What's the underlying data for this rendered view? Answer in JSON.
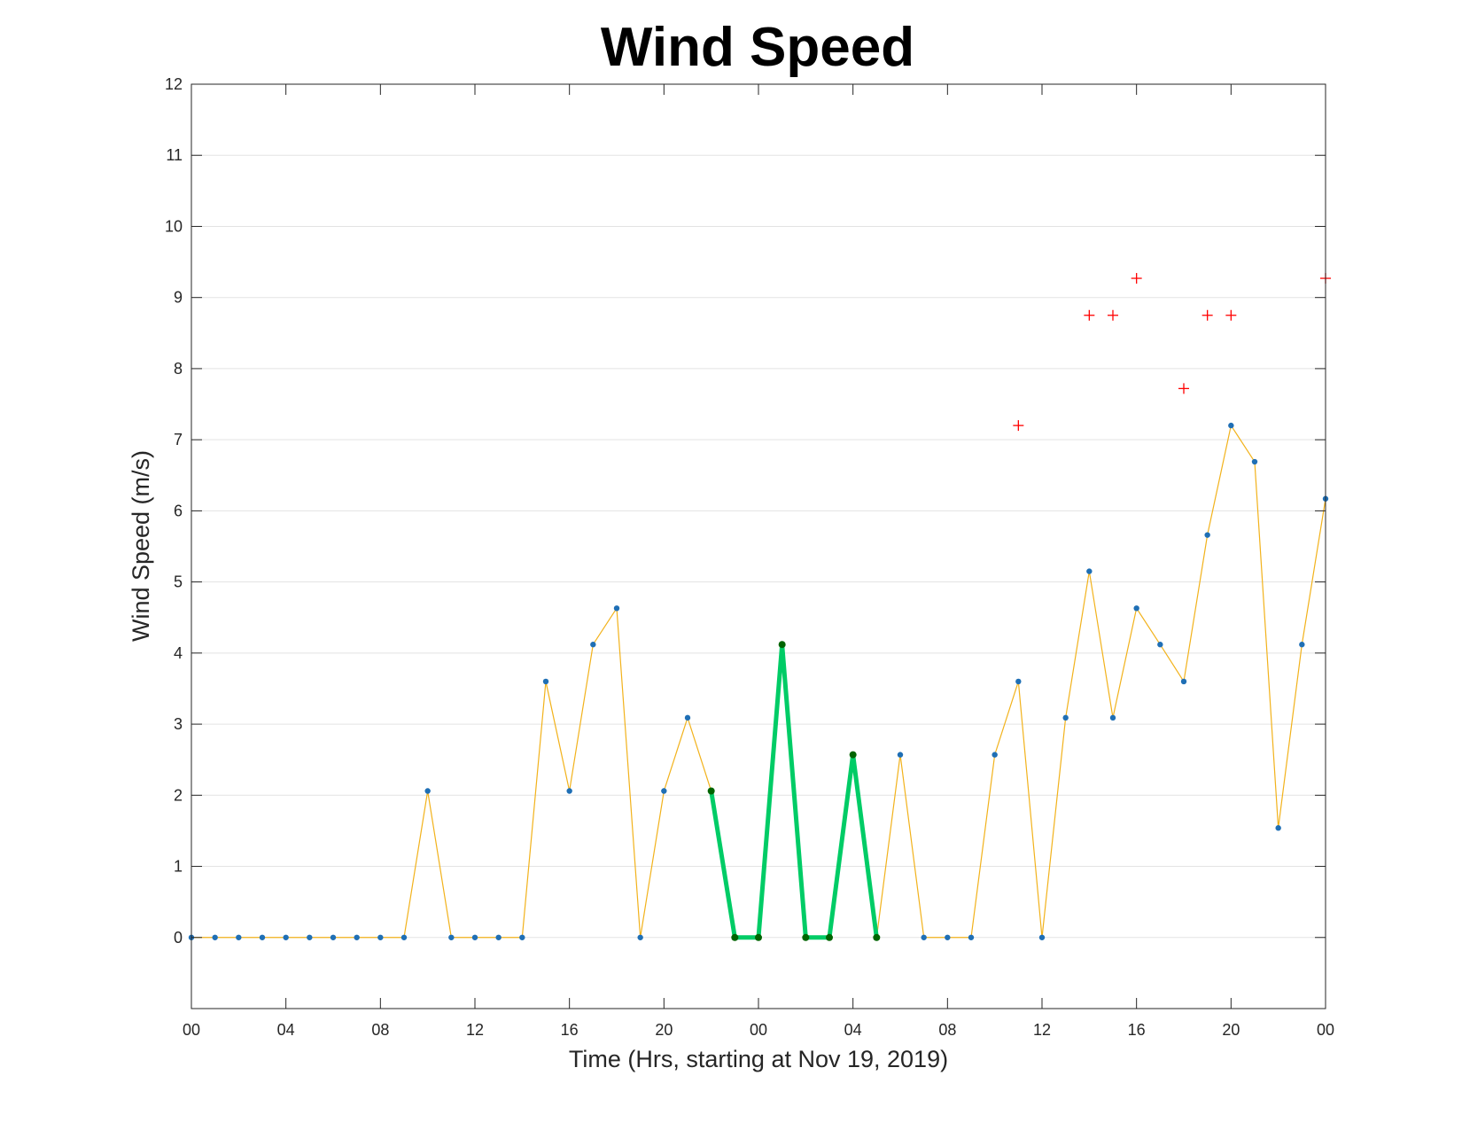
{
  "chart_data": {
    "type": "line",
    "title": "Wind Speed",
    "xlabel": "Time (Hrs, starting at Nov 19, 2019)",
    "ylabel": "Wind Speed (m/s)",
    "x_unit": "hour",
    "xlim": [
      0,
      48
    ],
    "ylim": [
      -1,
      12
    ],
    "grid": "horizontal",
    "x_ticks": [
      0,
      4,
      8,
      12,
      16,
      20,
      24,
      28,
      32,
      36,
      40,
      44,
      48
    ],
    "x_tick_labels": [
      "00",
      "04",
      "08",
      "12",
      "16",
      "20",
      "00",
      "04",
      "08",
      "12",
      "16",
      "20",
      "00"
    ],
    "y_ticks": [
      0,
      1,
      2,
      3,
      4,
      5,
      6,
      7,
      8,
      9,
      10,
      11,
      12
    ],
    "y_tick_labels": [
      "0",
      "1",
      "2",
      "3",
      "4",
      "5",
      "6",
      "7",
      "8",
      "9",
      "10",
      "11",
      "12"
    ],
    "series": [
      {
        "style": "line-markers",
        "line_color": "#F2B21B",
        "marker_color": "#1F6FB5",
        "x": [
          0,
          1,
          2,
          3,
          4,
          5,
          6,
          7,
          8,
          9,
          10,
          11,
          12,
          13,
          14,
          15,
          16,
          17,
          18,
          19,
          20,
          21,
          22,
          23,
          24,
          25,
          26,
          27,
          28,
          29,
          30,
          31,
          32,
          33,
          34,
          35,
          36,
          37,
          38,
          39,
          40,
          41,
          42,
          43,
          44,
          45,
          46,
          47,
          48
        ],
        "y": [
          0,
          0,
          0,
          0,
          0,
          0,
          0,
          0,
          0,
          0,
          2.06,
          0,
          0,
          0,
          0,
          3.6,
          2.06,
          4.12,
          4.63,
          0,
          2.06,
          3.09,
          2.06,
          0,
          0,
          4.12,
          0,
          0,
          2.57,
          0,
          2.57,
          0,
          0,
          0,
          2.57,
          3.6,
          0,
          3.09,
          5.15,
          3.09,
          4.63,
          4.12,
          3.6,
          5.66,
          7.2,
          6.69,
          1.54,
          4.12,
          6.17
        ]
      },
      {
        "style": "thick-line-markers",
        "line_color": "#00CC66",
        "marker_color": "#006400",
        "x": [
          22,
          23,
          24,
          25,
          26,
          27,
          28,
          29
        ],
        "y": [
          2.06,
          0,
          0,
          4.12,
          0,
          0,
          2.57,
          0
        ]
      },
      {
        "style": "plus-markers",
        "marker_color": "#FF0000",
        "x": [
          35,
          38,
          39,
          40,
          42,
          43,
          44,
          48
        ],
        "y": [
          7.2,
          8.75,
          8.75,
          9.27,
          7.72,
          8.75,
          8.75,
          9.27
        ]
      }
    ]
  }
}
